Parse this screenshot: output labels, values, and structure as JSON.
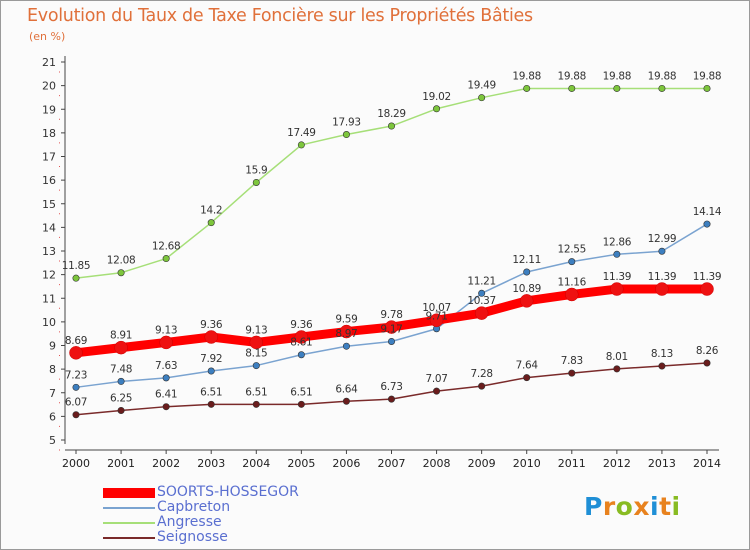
{
  "header": {
    "title": "Evolution du Taux de Taxe Foncière sur les Propriétés Bâties",
    "unit": "(en %)"
  },
  "logo": {
    "text": "Proxiti",
    "letters": [
      "P",
      "r",
      "o",
      "x",
      "i",
      "t",
      "i"
    ],
    "letter_colors": [
      "#1f8fd6",
      "#e8821e",
      "#88bb22",
      "#e8821e",
      "#1f8fd6",
      "#e8821e",
      "#88bb22"
    ]
  },
  "chart_data": {
    "type": "line",
    "title": "Evolution du Taux de Taxe Foncière sur les Propriétés Bâties",
    "ylabel": "(en %)",
    "xlabel": "",
    "x": [
      "2000",
      "2001",
      "2002",
      "2003",
      "2004",
      "2005",
      "2006",
      "2007",
      "2008",
      "2009",
      "2010",
      "2011",
      "2012",
      "2013",
      "2014"
    ],
    "ylim": [
      5,
      21
    ],
    "yticks": [
      5,
      6,
      7,
      8,
      9,
      10,
      11,
      12,
      13,
      14,
      15,
      16,
      17,
      18,
      19,
      20,
      21
    ],
    "grid": false,
    "legend_position": "bottom-left",
    "series": [
      {
        "name": "SOORTS-HOSSEGOR",
        "color": "#ff0000",
        "marker_color": "#ee1111",
        "emphasis": true,
        "values": [
          8.69,
          8.91,
          9.13,
          9.36,
          9.13,
          9.36,
          9.59,
          9.78,
          10.07,
          10.37,
          10.89,
          11.16,
          11.39,
          11.39,
          11.39
        ],
        "labels": [
          "8.69",
          "8.91",
          "9.13",
          "9.36",
          "9.13",
          "9.36",
          "9.59",
          "9.78",
          "10.07",
          "10.37",
          "10.89",
          "11.16",
          "11.39",
          "11.39",
          "11.39"
        ]
      },
      {
        "name": "Capbreton",
        "color": "#7aa3d0",
        "marker_color": "#3d7fc0",
        "emphasis": false,
        "values": [
          7.23,
          7.48,
          7.63,
          7.92,
          8.15,
          8.61,
          8.97,
          9.17,
          9.71,
          11.21,
          12.11,
          12.55,
          12.86,
          12.99,
          14.14
        ],
        "labels": [
          "7.23",
          "7.48",
          "7.63",
          "7.92",
          "8.15",
          "8.61",
          "8.97",
          "9.17",
          "9.71",
          "11.21",
          "12.11",
          "12.55",
          "12.86",
          "12.99",
          "14.14"
        ]
      },
      {
        "name": "Angresse",
        "color": "#a6df78",
        "marker_color": "#7dc63c",
        "emphasis": false,
        "values": [
          11.85,
          12.08,
          12.68,
          14.2,
          15.9,
          17.49,
          17.93,
          18.29,
          19.02,
          19.49,
          19.88,
          19.88,
          19.88,
          19.88,
          19.88
        ],
        "labels": [
          "11.85",
          "12.08",
          "12.68",
          "14.2",
          "15.9",
          "17.49",
          "17.93",
          "18.29",
          "19.02",
          "19.49",
          "19.88",
          "19.88",
          "19.88",
          "19.88",
          "19.88"
        ]
      },
      {
        "name": "Seignosse",
        "color": "#7a2a2a",
        "marker_color": "#6a1c1c",
        "emphasis": false,
        "values": [
          6.07,
          6.25,
          6.41,
          6.51,
          6.51,
          6.51,
          6.64,
          6.73,
          7.07,
          7.28,
          7.64,
          7.83,
          8.01,
          8.13,
          8.26
        ],
        "labels": [
          "6.07",
          "6.25",
          "6.41",
          "6.51",
          "6.51",
          "6.51",
          "6.64",
          "6.73",
          "7.07",
          "7.28",
          "7.64",
          "7.83",
          "8.01",
          "8.13",
          "8.26"
        ]
      }
    ]
  }
}
